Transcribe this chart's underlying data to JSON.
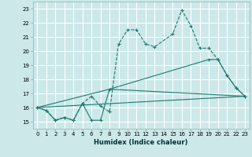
{
  "xlabel": "Humidex (Indice chaleur)",
  "background_color": "#cce8e8",
  "grid_color": "#ffffff",
  "line_color": "#1a7a6e",
  "xlim": [
    -0.5,
    23.5
  ],
  "ylim": [
    14.5,
    23.5
  ],
  "yticks": [
    15,
    16,
    17,
    18,
    19,
    20,
    21,
    22,
    23
  ],
  "xticks": [
    0,
    1,
    2,
    3,
    4,
    5,
    6,
    7,
    8,
    9,
    10,
    11,
    12,
    13,
    14,
    15,
    16,
    17,
    18,
    19,
    20,
    21,
    22,
    23
  ],
  "series1_x": [
    0,
    1,
    2,
    3,
    4,
    5,
    6,
    7,
    8,
    9,
    10,
    11,
    12,
    13,
    15,
    16,
    17,
    18,
    19,
    20,
    21,
    22,
    23
  ],
  "series1_y": [
    16.0,
    15.8,
    15.1,
    15.3,
    15.1,
    16.3,
    16.8,
    16.1,
    15.7,
    20.5,
    21.5,
    21.5,
    20.5,
    20.3,
    21.2,
    22.9,
    21.8,
    20.2,
    20.2,
    19.4,
    18.3,
    17.4,
    16.8
  ],
  "series2_x": [
    0,
    1,
    2,
    3,
    4,
    5,
    6,
    7,
    8,
    19,
    20,
    21,
    22,
    23
  ],
  "series2_y": [
    16.0,
    15.8,
    15.1,
    15.3,
    15.1,
    16.3,
    15.1,
    15.1,
    17.3,
    19.4,
    19.4,
    18.3,
    17.4,
    16.8
  ],
  "series3_x": [
    0,
    23
  ],
  "series3_y": [
    16.0,
    16.8
  ],
  "series4_x": [
    0,
    8,
    23
  ],
  "series4_y": [
    16.0,
    17.3,
    16.8
  ]
}
